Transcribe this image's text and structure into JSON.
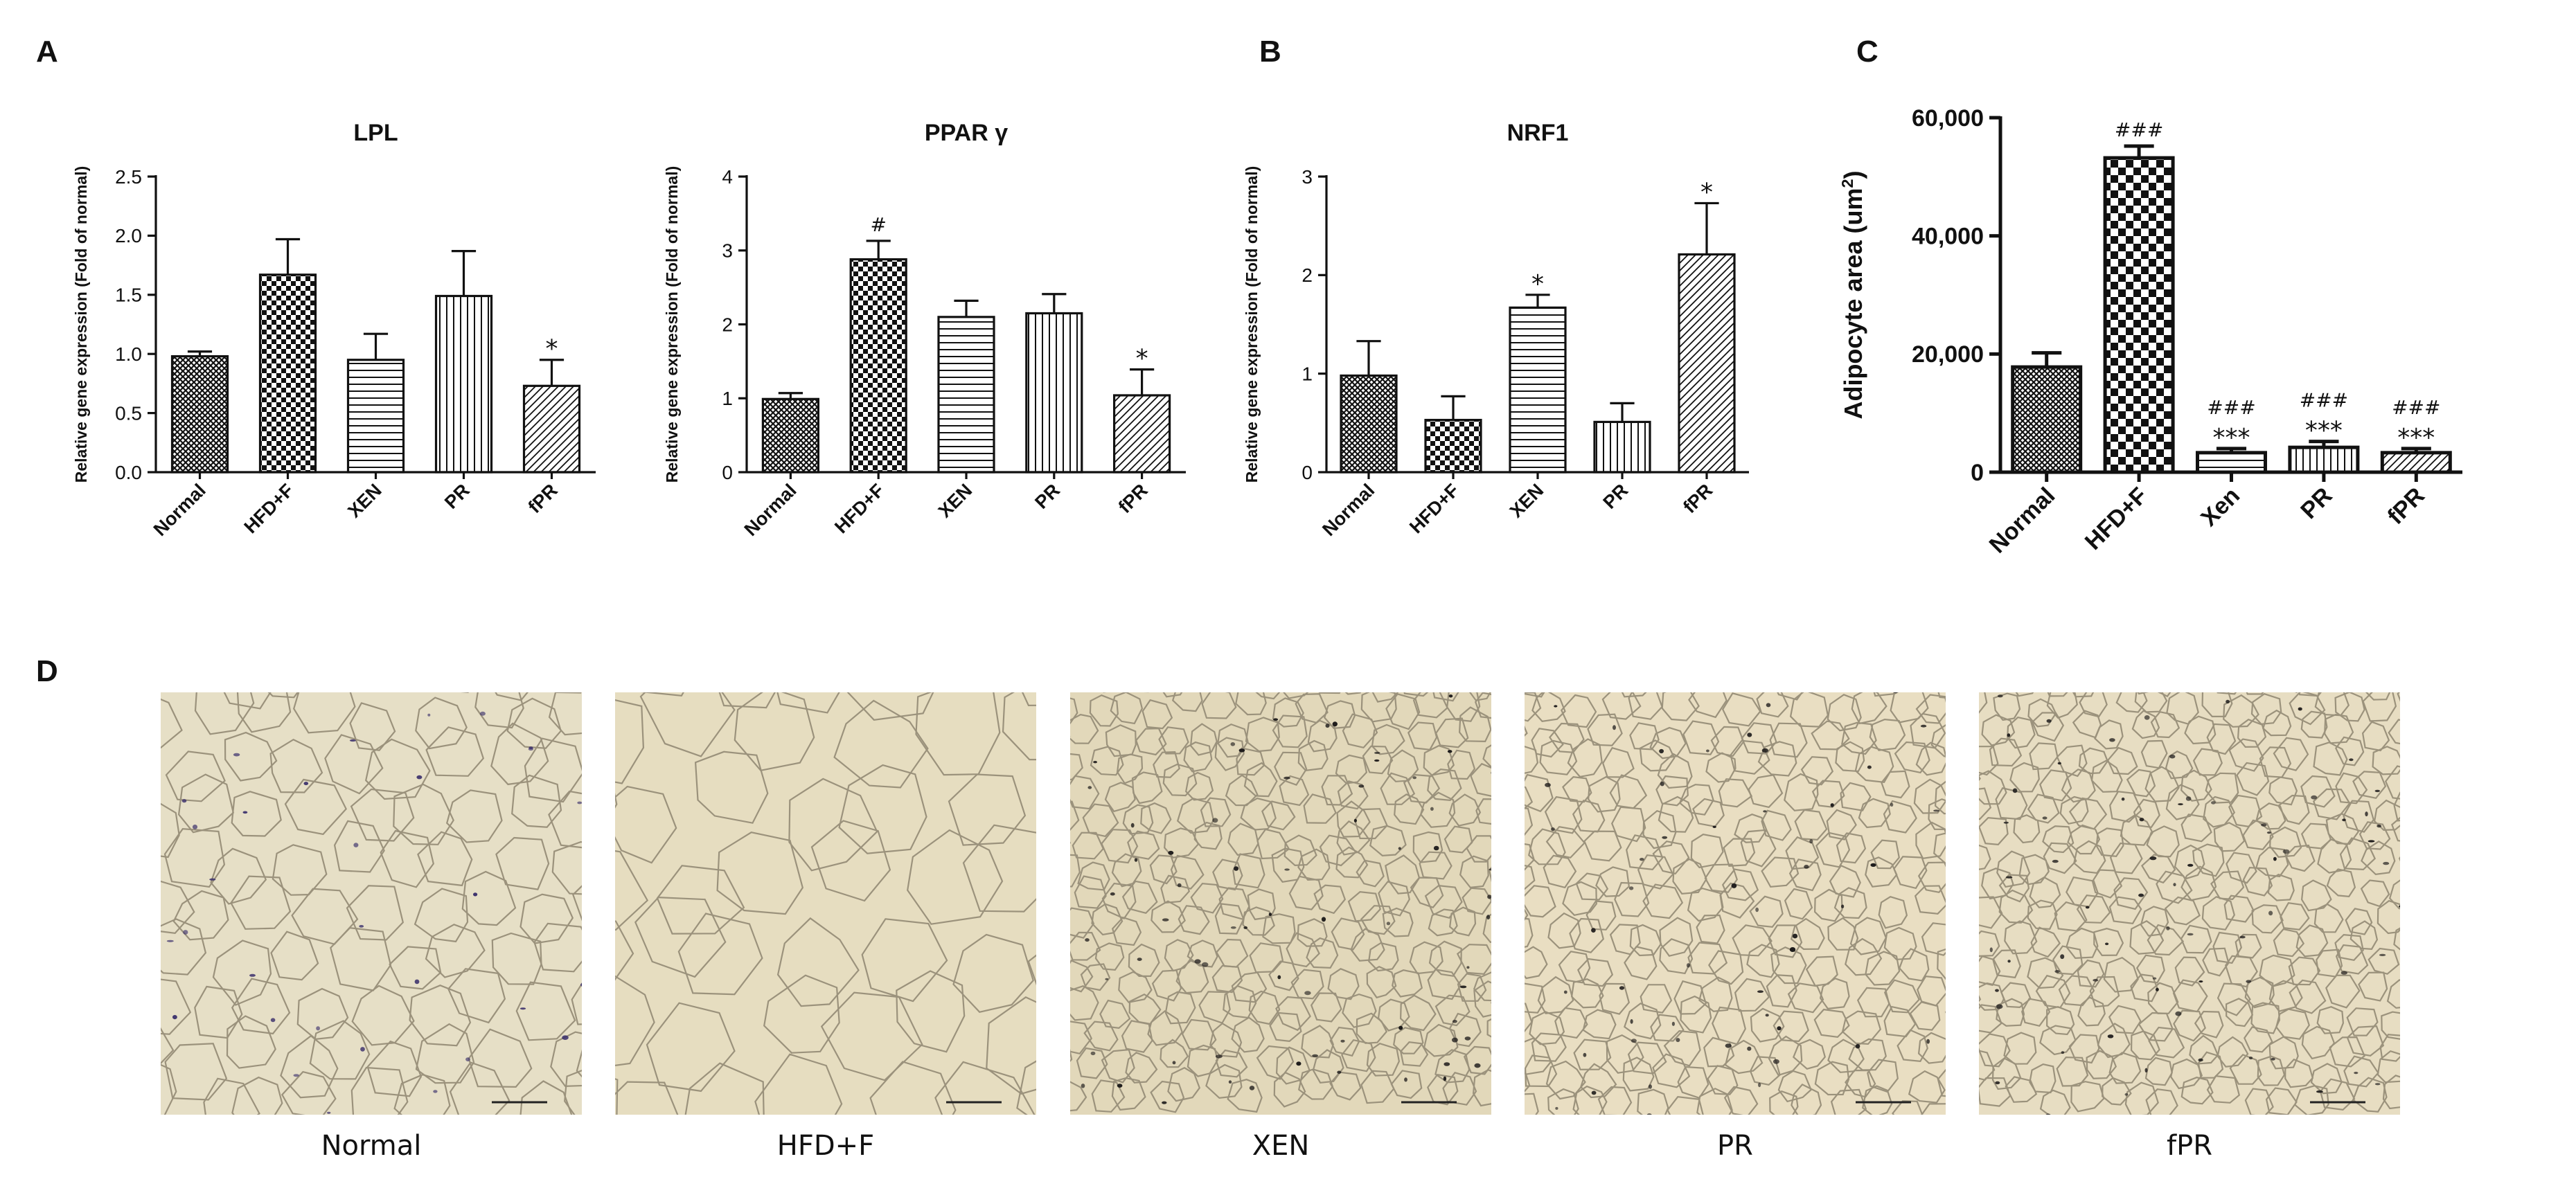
{
  "panel_labels": {
    "a": "A",
    "b": "B",
    "c": "C",
    "d": "D"
  },
  "colors": {
    "axis": "#111111",
    "bar_fill": "#ffffff",
    "bar_stroke": "#111111",
    "tissue_bg": "#e8dfc4",
    "membrane": "#a89f8a",
    "nucleus": "#2c2450"
  },
  "chart_data": [
    {
      "id": "lpl",
      "type": "bar",
      "title": "LPL",
      "ylabel": "Relative gene expression (Fold of normal)",
      "xlabel": "",
      "categories": [
        "Normal",
        "HFD+F",
        "XEN",
        "PR",
        "fPR"
      ],
      "values": [
        0.98,
        1.67,
        0.95,
        1.49,
        0.73
      ],
      "errors": [
        0.04,
        0.3,
        0.22,
        0.38,
        0.22
      ],
      "significance": [
        "",
        "",
        "",
        "",
        "*"
      ],
      "patterns": [
        "dense",
        "check",
        "hlines",
        "vlines",
        "diag"
      ],
      "ylim": [
        0,
        2.5
      ],
      "yticks": [
        0,
        0.5,
        1.0,
        1.5,
        2.0,
        2.5
      ],
      "ytick_labels": [
        "0.0",
        "0.5",
        "1.0",
        "1.5",
        "2.0",
        "2.5"
      ]
    },
    {
      "id": "pparg",
      "type": "bar",
      "title": "PPAR γ",
      "ylabel": "Relative gene expression (Fold of normal)",
      "xlabel": "",
      "categories": [
        "Normal",
        "HFD+F",
        "XEN",
        "PR",
        "fPR"
      ],
      "values": [
        0.99,
        2.88,
        2.1,
        2.15,
        1.04
      ],
      "errors": [
        0.08,
        0.25,
        0.22,
        0.26,
        0.35
      ],
      "significance": [
        "",
        "#",
        "",
        "",
        "*"
      ],
      "patterns": [
        "dense",
        "check",
        "hlines",
        "vlines",
        "diag"
      ],
      "ylim": [
        0,
        4
      ],
      "yticks": [
        0,
        1,
        2,
        3,
        4
      ],
      "ytick_labels": [
        "0",
        "1",
        "2",
        "3",
        "4"
      ]
    },
    {
      "id": "nrf1",
      "type": "bar",
      "title": "NRF1",
      "ylabel": "Relative gene expression (Fold of normal)",
      "xlabel": "",
      "categories": [
        "Normal",
        "HFD+F",
        "XEN",
        "PR",
        "fPR"
      ],
      "values": [
        0.98,
        0.53,
        1.67,
        0.51,
        2.21
      ],
      "errors": [
        0.35,
        0.24,
        0.13,
        0.19,
        0.52
      ],
      "significance": [
        "",
        "",
        "*",
        "",
        "*"
      ],
      "patterns": [
        "dense",
        "check",
        "hlines",
        "vlines",
        "diag"
      ],
      "ylim": [
        0,
        3
      ],
      "yticks": [
        0,
        1,
        2,
        3
      ],
      "ytick_labels": [
        "0",
        "1",
        "2",
        "3"
      ]
    },
    {
      "id": "adipocyte",
      "type": "bar",
      "title": "",
      "ylabel": "Adipocyte area (um²)",
      "xlabel": "",
      "categories": [
        "Normal",
        "HFD+F",
        "Xen",
        "PR",
        "fPR"
      ],
      "values": [
        17800,
        53200,
        3300,
        4200,
        3300
      ],
      "errors": [
        2400,
        2000,
        700,
        1000,
        700
      ],
      "significance": [
        "",
        "###",
        "###\n***",
        "###\n***",
        "###\n***"
      ],
      "patterns": [
        "dense",
        "bigcheck",
        "hlines",
        "vlines",
        "diag"
      ],
      "ylim": [
        0,
        60000
      ],
      "yticks": [
        0,
        20000,
        40000,
        60000
      ],
      "ytick_labels": [
        "0",
        "20,000",
        "40,000",
        "60,000"
      ]
    }
  ],
  "micrographs": [
    {
      "id": "normal",
      "label": "Normal",
      "seed": 11,
      "cell_size": 78,
      "nucleus_density": 0.55,
      "tint": "#e6dfc6",
      "nucleus_color": "#3a2f6b"
    },
    {
      "id": "hfdf",
      "label": "HFD+F",
      "seed": 23,
      "cell_size": 120,
      "nucleus_density": 0.06,
      "tint": "#e6ddc0",
      "nucleus_color": "#3a2f6b"
    },
    {
      "id": "xen",
      "label": "XEN",
      "seed": 37,
      "cell_size": 44,
      "nucleus_density": 0.3,
      "tint": "#e2d8ba",
      "nucleus_color": "#1c1a1a"
    },
    {
      "id": "pr",
      "label": "PR",
      "seed": 53,
      "cell_size": 46,
      "nucleus_density": 0.22,
      "tint": "#e9dec2",
      "nucleus_color": "#1c1a1a"
    },
    {
      "id": "fpr",
      "label": "fPR",
      "seed": 71,
      "cell_size": 42,
      "nucleus_density": 0.3,
      "tint": "#e7ddc2",
      "nucleus_color": "#1c1a1a"
    }
  ]
}
